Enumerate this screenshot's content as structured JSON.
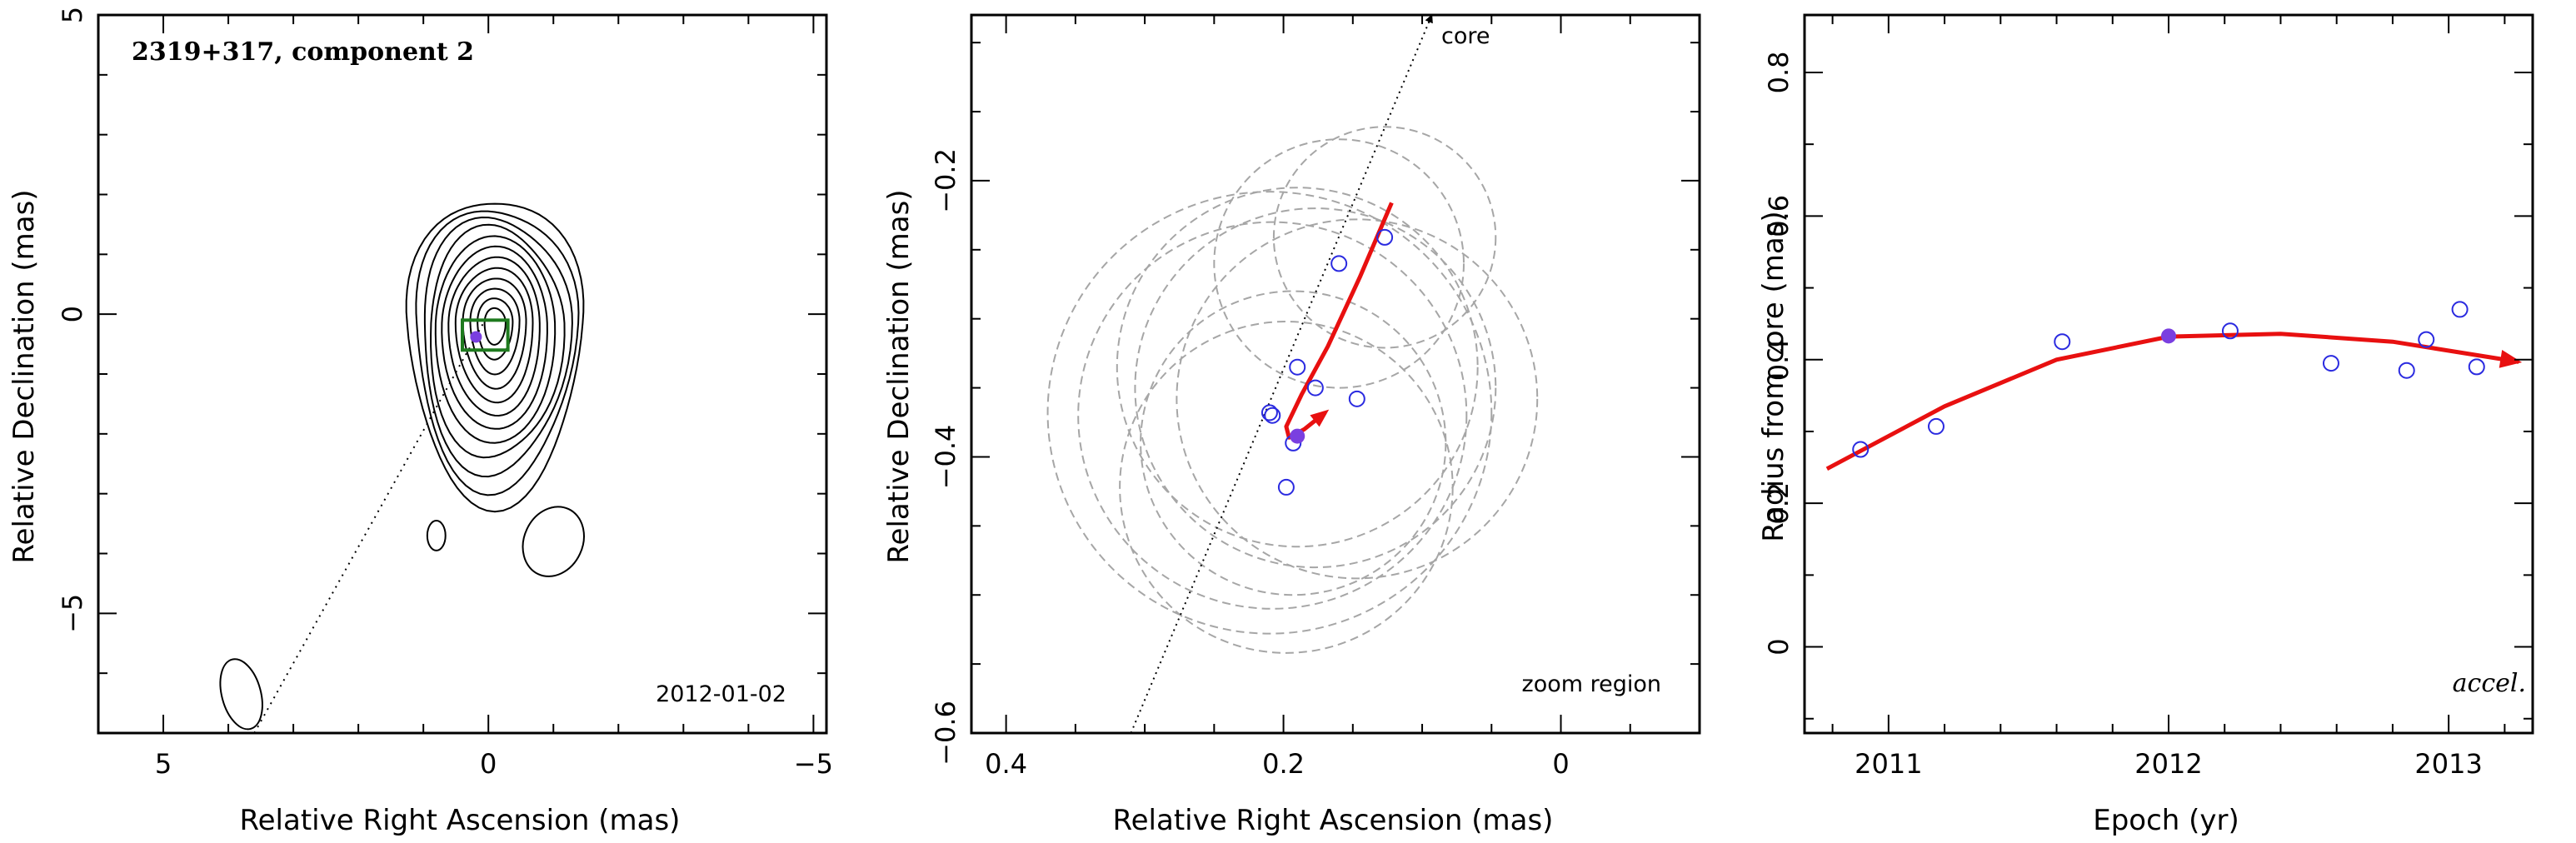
{
  "chart_data": [
    {
      "type": "contour",
      "title": "2319+317, component 2",
      "epoch_label": "2012-01-02",
      "xlabel": "Relative Right Ascension (mas)",
      "ylabel": "Relative Declination (mas)",
      "xlim": [
        6,
        -5.2
      ],
      "ylim": [
        -7,
        5
      ],
      "xticks": [
        5,
        0,
        -5
      ],
      "yticks": [
        5,
        0,
        -5
      ],
      "xtick_labels": [
        "5",
        "0",
        "−5"
      ],
      "ytick_labels": [
        "5",
        "0",
        "−5"
      ],
      "component_position": [
        0.19,
        -0.38
      ],
      "zoom_box": {
        "x": [
          -0.3,
          0.4
        ],
        "y": [
          -0.6,
          -0.1
        ]
      },
      "jet_direction_line": {
        "from": [
          3.6,
          -7
        ],
        "to": [
          0,
          0
        ]
      },
      "colors": {
        "contour": "#000000",
        "zoom_box": "#1e7a1e",
        "marker": "#7a3fe0"
      }
    },
    {
      "type": "scatter",
      "note": "zoom region",
      "core_label": "core",
      "xlabel": "Relative Right Ascension (mas)",
      "ylabel": "Relative Declination (mas)",
      "xlim": [
        0.425,
        -0.1
      ],
      "ylim": [
        -0.6,
        -0.08
      ],
      "xticks": [
        0.4,
        0.2,
        0
      ],
      "yticks": [
        -0.6,
        -0.4,
        -0.2
      ],
      "xtick_labels": [
        "0.4",
        "0.2",
        "0"
      ],
      "ytick_labels": [
        "−0.6",
        "−0.4",
        "−0.2"
      ],
      "points": [
        {
          "x": 0.127,
          "y": -0.241
        },
        {
          "x": 0.16,
          "y": -0.26
        },
        {
          "x": 0.19,
          "y": -0.335
        },
        {
          "x": 0.177,
          "y": -0.35
        },
        {
          "x": 0.147,
          "y": -0.358
        },
        {
          "x": 0.21,
          "y": -0.368
        },
        {
          "x": 0.208,
          "y": -0.37
        },
        {
          "x": 0.193,
          "y": -0.39
        },
        {
          "x": 0.198,
          "y": -0.422
        }
      ],
      "highlight_point": {
        "x": 0.19,
        "y": -0.385
      },
      "fit_path": [
        [
          0.122,
          -0.216
        ],
        [
          0.145,
          -0.27
        ],
        [
          0.168,
          -0.32
        ],
        [
          0.187,
          -0.355
        ],
        [
          0.198,
          -0.378
        ],
        [
          0.196,
          -0.386
        ],
        [
          0.185,
          -0.38
        ],
        [
          0.17,
          -0.368
        ]
      ],
      "error_circles": [
        {
          "x": 0.127,
          "y": -0.241,
          "r": 0.08
        },
        {
          "x": 0.16,
          "y": -0.26,
          "r": 0.09
        },
        {
          "x": 0.19,
          "y": -0.335,
          "r": 0.13
        },
        {
          "x": 0.177,
          "y": -0.35,
          "r": 0.13
        },
        {
          "x": 0.147,
          "y": -0.358,
          "r": 0.13
        },
        {
          "x": 0.21,
          "y": -0.368,
          "r": 0.16
        },
        {
          "x": 0.208,
          "y": -0.37,
          "r": 0.14
        },
        {
          "x": 0.193,
          "y": -0.39,
          "r": 0.11
        },
        {
          "x": 0.198,
          "y": -0.422,
          "r": 0.12
        }
      ],
      "jet_direction_line": {
        "from": [
          0.31,
          -0.6
        ],
        "to": [
          0.093,
          -0.08
        ]
      },
      "colors": {
        "points": "#2a2ae0",
        "fit": "#e81010",
        "circles": "#a6a6a6",
        "highlight": "#7a3fe0"
      }
    },
    {
      "type": "scatter",
      "note": "accel.",
      "xlabel": "Epoch (yr)",
      "ylabel": "Radius from core (mas)",
      "xlim": [
        2010.7,
        2013.3
      ],
      "ylim": [
        -0.12,
        0.88
      ],
      "xticks": [
        2011,
        2012,
        2013
      ],
      "yticks": [
        0,
        0.2,
        0.4,
        0.6,
        0.8
      ],
      "xtick_labels": [
        "2011",
        "2012",
        "2013"
      ],
      "ytick_labels": [
        "0",
        "0.2",
        "0.4",
        "0.6",
        "0.8"
      ],
      "points": [
        {
          "x": 2010.9,
          "y": 0.275
        },
        {
          "x": 2011.17,
          "y": 0.307
        },
        {
          "x": 2011.62,
          "y": 0.425
        },
        {
          "x": 2012.22,
          "y": 0.44
        },
        {
          "x": 2012.58,
          "y": 0.395
        },
        {
          "x": 2012.85,
          "y": 0.385
        },
        {
          "x": 2012.92,
          "y": 0.428
        },
        {
          "x": 2013.04,
          "y": 0.47
        },
        {
          "x": 2013.1,
          "y": 0.39
        }
      ],
      "highlight_point": {
        "x": 2012.0,
        "y": 0.433
      },
      "fit": {
        "model": "quadratic",
        "x": [
          2010.78,
          2011.2,
          2011.6,
          2012.0,
          2012.4,
          2012.8,
          2013.25
        ],
        "y": [
          0.248,
          0.335,
          0.4,
          0.432,
          0.436,
          0.425,
          0.397
        ]
      },
      "colors": {
        "points": "#2a2ae0",
        "fit": "#e81010",
        "highlight": "#7a3fe0"
      }
    }
  ]
}
